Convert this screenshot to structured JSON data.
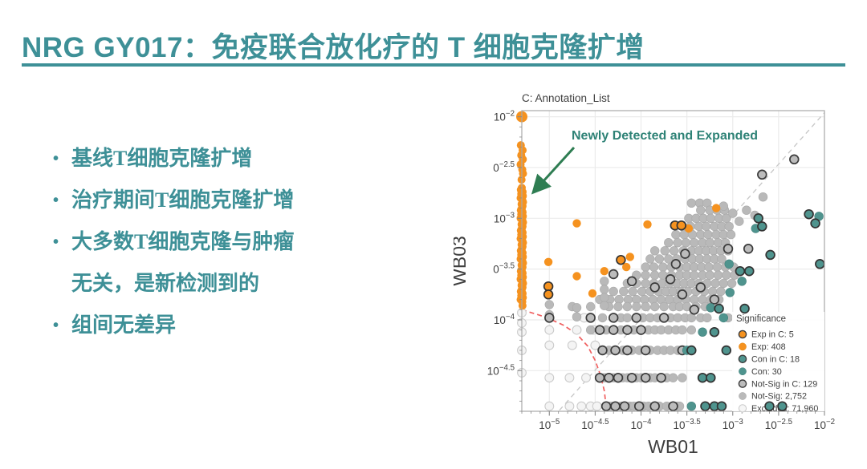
{
  "slide": {
    "title": "NRG GY017：免疫联合放化疗的 T 细胞克隆扩增",
    "accent_color": "#3E9097",
    "bullets": [
      "基线T细胞克隆扩增",
      "治疗期间T细胞克隆扩增",
      "大多数T细胞克隆与肿瘤无关，是新检测到的",
      "组间无差异"
    ]
  },
  "chart_data": {
    "type": "scatter",
    "title": "C: Annotation_List",
    "xlabel": "WB01",
    "ylabel": "WB03",
    "scale": "log10",
    "x_domain": [
      -5.3,
      -2.0
    ],
    "y_domain": [
      -4.9,
      -1.94
    ],
    "grid": true,
    "x_ticks": [
      {
        "v": -5,
        "b": "10",
        "e": "−5"
      },
      {
        "v": -4.5,
        "b": "10",
        "e": "−4.5"
      },
      {
        "v": -4,
        "b": "10",
        "e": "−4"
      },
      {
        "v": -3.5,
        "b": "10",
        "e": "−3.5"
      },
      {
        "v": -3,
        "b": "10",
        "e": "−3"
      },
      {
        "v": -2.5,
        "b": "10",
        "e": "−2.5"
      },
      {
        "v": -2,
        "b": "10",
        "e": "−2"
      }
    ],
    "y_ticks": [
      {
        "v": -2,
        "b": "10",
        "e": "−2"
      },
      {
        "v": -2.5,
        "b": "0",
        "e": "−2.5"
      },
      {
        "v": -3,
        "b": "10",
        "e": "−3"
      },
      {
        "v": -3.5,
        "b": "0",
        "e": "−3.5"
      },
      {
        "v": -4,
        "b": "10",
        "e": "−4"
      },
      {
        "v": -4.5,
        "b": "10",
        "e": "−4.5"
      }
    ],
    "annotation": {
      "text": "Newly Detected and Expanded",
      "color": "#2E8276",
      "arrow_color": "#2E7D52"
    },
    "identity_line": {
      "points": [
        [
          -4.89,
          -4.89
        ],
        [
          -2.0,
          -1.96
        ]
      ],
      "color": "#C6C6C6"
    },
    "threshold_curve": {
      "color": "#F06060",
      "points": [
        [
          -5.3,
          -3.9
        ],
        [
          -5.05,
          -3.97
        ],
        [
          -4.85,
          -4.05
        ],
        [
          -4.7,
          -4.14
        ],
        [
          -4.58,
          -4.26
        ],
        [
          -4.5,
          -4.4
        ],
        [
          -4.44,
          -4.55
        ],
        [
          -4.4,
          -4.7
        ],
        [
          -4.38,
          -4.86
        ]
      ]
    },
    "legend": {
      "title": "Significance",
      "entries": [
        {
          "label": "Exp in C: 5",
          "fill": "#F5921F",
          "stroke": "#3C3C3C",
          "sw": 1.4
        },
        {
          "label": "Exp: 408",
          "fill": "#F5921F",
          "stroke": "#E0820D",
          "sw": 0.5
        },
        {
          "label": "Con in C: 18",
          "fill": "#4F948E",
          "stroke": "#3C3C3C",
          "sw": 1.4
        },
        {
          "label": "Con: 30",
          "fill": "#4F948E",
          "stroke": "#44827D",
          "sw": 0.5
        },
        {
          "label": "Not-Sig in C: 129",
          "fill": "#BCBCBC",
          "stroke": "#3C3C3C",
          "sw": 1.4
        },
        {
          "label": "Not-Sig: 2,752",
          "fill": "#B9B9B9",
          "stroke": "#A9A9A9",
          "sw": 0.5
        },
        {
          "label": "Excluded: 71,960",
          "fill": "#F6F6F6",
          "stroke": "#C9C9C9",
          "sw": 1
        }
      ]
    },
    "series": {
      "excluded": {
        "name": "Excluded",
        "fill": "#F4F4F4",
        "stroke": "#CBCBCB",
        "sw": 1.1,
        "r": 5.4,
        "points": [
          [
            -5.3,
            -3.93
          ],
          [
            -5.3,
            -4.03
          ],
          [
            -5.3,
            -4.12
          ],
          [
            -5.3,
            -4.3
          ],
          [
            -5.3,
            -4.52
          ],
          [
            -5.0,
            -4.1
          ],
          [
            -4.7,
            -4.1
          ],
          [
            -5.0,
            -4.25
          ],
          [
            -4.75,
            -4.25
          ],
          [
            -4.5,
            -4.25
          ],
          [
            -5.0,
            -4.57
          ],
          [
            -4.78,
            -4.57
          ],
          [
            -4.6,
            -4.57
          ],
          [
            -5.0,
            -4.85
          ],
          [
            -4.78,
            -4.85
          ],
          [
            -4.65,
            -4.85
          ],
          [
            -4.55,
            -4.85
          ],
          [
            -4.48,
            -4.85
          ],
          [
            -4.52,
            -4.1
          ],
          [
            -4.62,
            -3.98
          ]
        ]
      },
      "not_sig": {
        "name": "Not-Sig",
        "fill": "#B9B9B9",
        "stroke": "#A9A9A9",
        "sw": 0.6,
        "r": 5.4,
        "rows": [
          {
            "y": -2.85,
            "xs": [
              -3.45,
              -3.36,
              -3.28
            ]
          },
          {
            "y": -2.92,
            "xs": [
              -3.35,
              -3.25,
              -3.17,
              -3.09
            ]
          },
          {
            "y": -3.0,
            "xs": [
              -3.48,
              -3.4,
              -3.32,
              -3.24,
              -3.15,
              -3.07
            ]
          },
          {
            "y": -3.08,
            "xs": [
              -3.55,
              -3.46,
              -3.37,
              -3.29,
              -3.2,
              -3.12,
              -3.04
            ]
          },
          {
            "y": -3.16,
            "xs": [
              -3.62,
              -3.53,
              -3.44,
              -3.35,
              -3.27,
              -3.18,
              -3.1,
              -3.02
            ]
          },
          {
            "y": -3.24,
            "xs": [
              -3.7,
              -3.6,
              -3.51,
              -3.42,
              -3.33,
              -3.25,
              -3.16,
              -3.08
            ]
          },
          {
            "y": -3.32,
            "xs": [
              -3.85,
              -3.74,
              -3.64,
              -3.54,
              -3.45,
              -3.37,
              -3.29,
              -3.21,
              -3.13,
              -3.05
            ]
          },
          {
            "y": -3.4,
            "xs": [
              -3.9,
              -3.8,
              -3.7,
              -3.61,
              -3.52,
              -3.44,
              -3.36,
              -3.28,
              -3.2,
              -3.12
            ]
          },
          {
            "y": -3.48,
            "xs": [
              -3.95,
              -3.86,
              -3.76,
              -3.67,
              -3.58,
              -3.5,
              -3.42,
              -3.34,
              -3.26,
              -3.17,
              -3.08,
              -2.99
            ]
          },
          {
            "y": -3.56,
            "xs": [
              -4.05,
              -3.95,
              -3.85,
              -3.76,
              -3.67,
              -3.58,
              -3.5,
              -3.42,
              -3.33,
              -3.25,
              -3.16,
              -3.07,
              -2.98
            ]
          },
          {
            "y": -3.64,
            "xs": [
              -4.15,
              -4.05,
              -3.95,
              -3.86,
              -3.77,
              -3.69,
              -3.61,
              -3.53,
              -3.45,
              -3.37,
              -3.28,
              -3.19,
              -3.1,
              -3.01
            ]
          },
          {
            "y": -3.72,
            "xs": [
              -4.3,
              -4.19,
              -4.09,
              -3.99,
              -3.9,
              -3.81,
              -3.73,
              -3.65,
              -3.57,
              -3.49,
              -3.4,
              -3.31,
              -3.22,
              -3.13
            ]
          },
          {
            "y": -3.8,
            "xs": [
              -4.45,
              -4.34,
              -4.24,
              -4.14,
              -4.05,
              -3.96,
              -3.87,
              -3.78,
              -3.69,
              -3.6,
              -3.51,
              -3.42,
              -3.33,
              -3.24,
              -3.15
            ]
          },
          {
            "y": -3.87,
            "xs": [
              -4.75,
              -4.55,
              -4.35,
              -4.25,
              -4.15,
              -4.05,
              -3.95,
              -3.85,
              -3.75,
              -3.65,
              -3.58,
              -3.5,
              -3.4,
              -3.3
            ]
          },
          {
            "y": -3.98,
            "xs": [
              -4.42,
              -4.22,
              -4.15,
              -3.98,
              -3.9,
              -3.82,
              -3.68,
              -3.6,
              -3.52,
              -3.45,
              -3.35,
              -3.28,
              -3.05
            ]
          },
          {
            "y": -4.1,
            "xs": [
              -4.55,
              -4.38,
              -4.22,
              -4.08,
              -3.92,
              -3.85,
              -3.78,
              -3.7,
              -3.62,
              -3.55,
              -3.45
            ]
          },
          {
            "y": -4.3,
            "xs": [
              -4.35,
              -4.2,
              -4.1,
              -4.02,
              -3.9,
              -3.82,
              -3.75,
              -3.68,
              -3.6
            ]
          },
          {
            "y": -4.57,
            "xs": [
              -4.4,
              -4.3,
              -4.2,
              -4.15,
              -4.05,
              -4.0,
              -3.9,
              -3.85,
              -3.72,
              -3.65,
              -3.55
            ]
          },
          {
            "y": -4.85,
            "xs": [
              -4.33,
              -4.22,
              -4.12,
              -4.08,
              -3.97,
              -3.92,
              -3.8,
              -3.72,
              -3.6,
              -3.58
            ]
          }
        ],
        "points": [
          [
            -3.0,
            -2.95
          ],
          [
            -2.93,
            -3.03
          ],
          [
            -3.1,
            -2.88
          ],
          [
            -2.67,
            -2.79
          ],
          [
            -2.85,
            -2.92
          ],
          [
            -2.76,
            -2.97
          ],
          [
            -5.0,
            -3.85
          ],
          [
            -5.0,
            -3.95
          ],
          [
            -4.7,
            -3.88
          ],
          [
            -4.7,
            -3.97
          ],
          [
            -4.4,
            -3.62
          ],
          [
            -4.4,
            -3.7
          ],
          [
            -4.4,
            -3.78
          ],
          [
            -4.4,
            -3.86
          ]
        ]
      },
      "not_sig_in_c": {
        "name": "Not-Sig in C",
        "fill": "#BCBCBC",
        "stroke": "#3C3C3C",
        "sw": 1.7,
        "r": 5.4,
        "rows": [
          {
            "y": -3.98,
            "xs": [
              -5.0,
              -4.55,
              -4.3,
              -4.05,
              -3.75
            ]
          },
          {
            "y": -4.1,
            "xs": [
              -4.45,
              -4.3,
              -4.15,
              -4.0
            ]
          },
          {
            "y": -4.3,
            "xs": [
              -4.42,
              -4.28,
              -4.15,
              -3.95,
              -3.55
            ]
          },
          {
            "y": -4.57,
            "xs": [
              -4.45,
              -4.35,
              -4.25,
              -4.1,
              -3.95,
              -3.78
            ]
          },
          {
            "y": -4.85,
            "xs": [
              -4.38,
              -4.28,
              -4.18,
              -4.02,
              -3.85,
              -3.65
            ]
          }
        ],
        "points": [
          [
            -4.3,
            -3.55
          ],
          [
            -4.1,
            -3.62
          ],
          [
            -3.85,
            -3.68
          ],
          [
            -3.68,
            -3.6
          ],
          [
            -3.55,
            -3.75
          ],
          [
            -3.35,
            -3.68
          ],
          [
            -3.2,
            -3.8
          ],
          [
            -3.42,
            -3.9
          ],
          [
            -3.05,
            -3.3
          ],
          [
            -2.83,
            -3.3
          ],
          [
            -2.33,
            -2.42
          ],
          [
            -2.68,
            -2.57
          ],
          [
            -3.52,
            -3.35
          ],
          [
            -3.62,
            -3.45
          ]
        ]
      },
      "con": {
        "name": "Con",
        "fill": "#4F948E",
        "stroke": "#44827D",
        "sw": 0.6,
        "r": 5.4,
        "points": [
          [
            -2.06,
            -2.98
          ],
          [
            -2.75,
            -3.1
          ],
          [
            -3.04,
            -3.45
          ],
          [
            -3.03,
            -3.73
          ],
          [
            -3.24,
            -3.88
          ],
          [
            -3.1,
            -3.98
          ],
          [
            -3.33,
            -4.12
          ],
          [
            -3.45,
            -4.85
          ],
          [
            -3.5,
            -4.3
          ],
          [
            -2.9,
            -3.62
          ]
        ]
      },
      "con_in_c": {
        "name": "Con in C",
        "fill": "#4F948E",
        "stroke": "#333333",
        "sw": 1.7,
        "r": 5.4,
        "points": [
          [
            -2.17,
            -2.96
          ],
          [
            -2.1,
            -3.05
          ],
          [
            -2.72,
            -3.0
          ],
          [
            -2.68,
            -3.08
          ],
          [
            -2.59,
            -3.36
          ],
          [
            -2.05,
            -3.45
          ],
          [
            -2.92,
            -3.52
          ],
          [
            -2.82,
            -3.52
          ],
          [
            -3.15,
            -3.89
          ],
          [
            -3.2,
            -4.12
          ],
          [
            -3.45,
            -4.3
          ],
          [
            -3.33,
            -4.57
          ],
          [
            -3.24,
            -4.57
          ],
          [
            -3.3,
            -4.85
          ],
          [
            -3.2,
            -4.85
          ],
          [
            -3.12,
            -4.85
          ],
          [
            -3.07,
            -4.3
          ]
        ],
        "overlay_points": [
          [
            -2.87,
            -3.89
          ],
          [
            -2.6,
            -4.85
          ],
          [
            -2.46,
            -4.85
          ]
        ]
      },
      "exp": {
        "name": "Exp",
        "fill": "#F5921F",
        "stroke": "none",
        "sw": 0,
        "r": 5.2,
        "points": [
          [
            -4.7,
            -3.05
          ],
          [
            -3.93,
            -3.06
          ],
          [
            -3.18,
            -2.9
          ],
          [
            -5.01,
            -3.43
          ],
          [
            -4.4,
            -3.52
          ],
          [
            -4.7,
            -3.57
          ],
          [
            -4.12,
            -3.38
          ],
          [
            -4.16,
            -3.48
          ],
          [
            -4.53,
            -3.74
          ],
          [
            -3.48,
            -3.1
          ]
        ],
        "column": {
          "x": -5.3,
          "sparse_y": [
            [
              -2.0,
              7
            ],
            [
              -2.28,
              5
            ],
            [
              -2.33,
              5
            ],
            [
              -2.38,
              5
            ],
            [
              -2.42,
              5
            ],
            [
              -2.47,
              5
            ],
            [
              -2.52,
              5
            ],
            [
              -2.56,
              5
            ],
            [
              -2.62,
              5
            ],
            [
              -3.86,
              5
            ]
          ],
          "dense": {
            "from": -2.7,
            "to": -3.82,
            "step": 0.02
          }
        }
      },
      "exp_in_c": {
        "name": "Exp in C",
        "fill": "#F5921F",
        "stroke": "#333333",
        "sw": 1.7,
        "r": 5.4,
        "points": [
          [
            -3.63,
            -3.07
          ],
          [
            -3.56,
            -3.07
          ],
          [
            -4.22,
            -3.41
          ],
          [
            -5.01,
            -3.67
          ],
          [
            -5.01,
            -3.75
          ]
        ]
      }
    }
  }
}
